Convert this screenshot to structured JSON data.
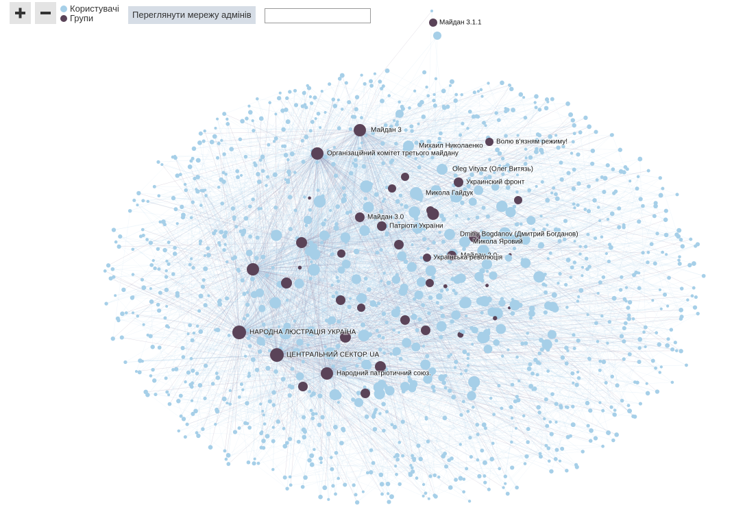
{
  "legend": [
    {
      "label": "Користувачі",
      "color": "#a6cfe8"
    },
    {
      "label": "Групи",
      "color": "#5a4358"
    }
  ],
  "toolbar": {
    "admins_button": "Переглянути мережу адмінів"
  },
  "nodes": [
    {
      "label": "Майдан 3.1.1",
      "color": "#5a4358"
    },
    {
      "label": "Майдан 3",
      "color": "#5a4358"
    },
    {
      "label": "Організаційний комітет третього майдану",
      "color": "#5a4358"
    },
    {
      "label": "Михаил Николаенко",
      "color": "#a6cfe8"
    },
    {
      "label": "Волю в'язням режиму!",
      "color": "#5a4358"
    },
    {
      "label": "Oleg  Vityaz (Олег Витязь)",
      "color": "#a6cfe8"
    },
    {
      "label": "Украинский фронт",
      "color": "#5a4358"
    },
    {
      "label": "Микола Гайдук",
      "color": "#a6cfe8"
    },
    {
      "label": "Майдан 3.0",
      "color": "#5a4358"
    },
    {
      "label": "Патріоти України",
      "color": "#5a4358"
    },
    {
      "label": "Dmitry  Bogdanov (Дмитрий Богданов)",
      "color": "#a6cfe8"
    },
    {
      "label": "Микола Яровий",
      "color": "#a6cfe8"
    },
    {
      "label": "Майдан 2.0",
      "color": "#5a4358"
    },
    {
      "label": "Українська революція",
      "color": "#5a4358"
    },
    {
      "label": "НАРОДНА ЛЮСТРАЦІЯ УКРАЇНА",
      "color": "#5a4358"
    },
    {
      "label": "ЦЕНТРАЛЬНИЙ СЕКТОР. UA",
      "color": "#5a4358"
    },
    {
      "label": "Народний патріотичний союз.",
      "color": "#5a4358"
    }
  ]
}
